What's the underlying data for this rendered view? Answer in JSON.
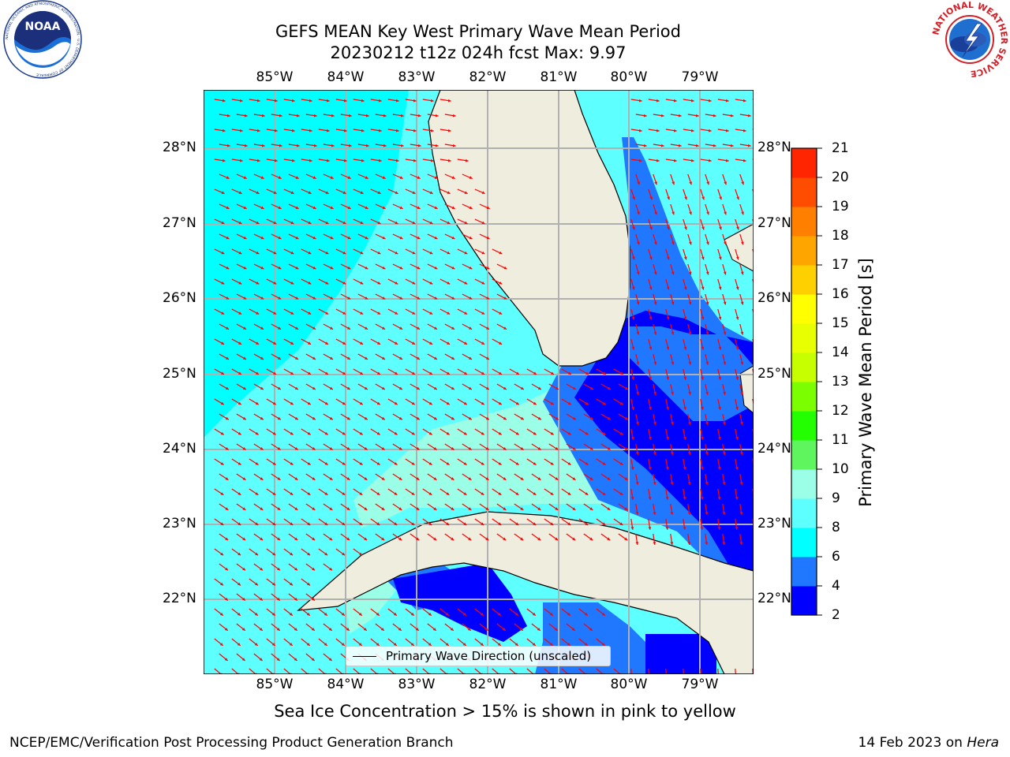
{
  "title": {
    "line1": "GEFS MEAN Key West Primary Wave Mean Period",
    "line2": "20230212 t12z 024h fcst   Max: 9.97"
  },
  "map": {
    "lon_labels": [
      "85°W",
      "84°W",
      "83°W",
      "82°W",
      "81°W",
      "80°W",
      "79°W"
    ],
    "lat_labels": [
      "28°N",
      "27°N",
      "26°N",
      "25°N",
      "24°N",
      "23°N",
      "22°N"
    ],
    "legend_label": "Primary Wave Direction (unscaled)",
    "colors": {
      "land": "#efedde",
      "arrow": "#ff0000",
      "grid": "#b0b0b0",
      "coast": "#000000"
    }
  },
  "colorbar": {
    "label": "Primary Wave Mean Period [s]",
    "ticks": [
      "2",
      "4",
      "6",
      "8",
      "9",
      "10",
      "11",
      "12",
      "13",
      "14",
      "15",
      "16",
      "17",
      "18",
      "19",
      "20",
      "21"
    ],
    "colors": [
      "#0000ff",
      "#1f78ff",
      "#00ffff",
      "#5effff",
      "#9affe6",
      "#5ef55e",
      "#23ff00",
      "#7bff00",
      "#c8ff00",
      "#e7ff00",
      "#ffff00",
      "#ffd000",
      "#ffa500",
      "#ff7f00",
      "#ff4d00",
      "#ff2500",
      "#ff0000"
    ]
  },
  "subtitle": "Sea Ice Concentration > 15% is shown in pink to yellow",
  "footer": {
    "left": "NCEP/EMC/Verification Post Processing Product Generation Branch",
    "right_prefix": "14 Feb 2023 on ",
    "right_host": "Hera"
  },
  "logos": {
    "left": "NOAA",
    "left_ring": "NATIONAL OCEANIC AND ATMOSPHERIC ADMINISTRATION · U.S. DEPARTMENT OF COMMERCE",
    "right_ring": "NATIONAL WEATHER SERVICE"
  }
}
